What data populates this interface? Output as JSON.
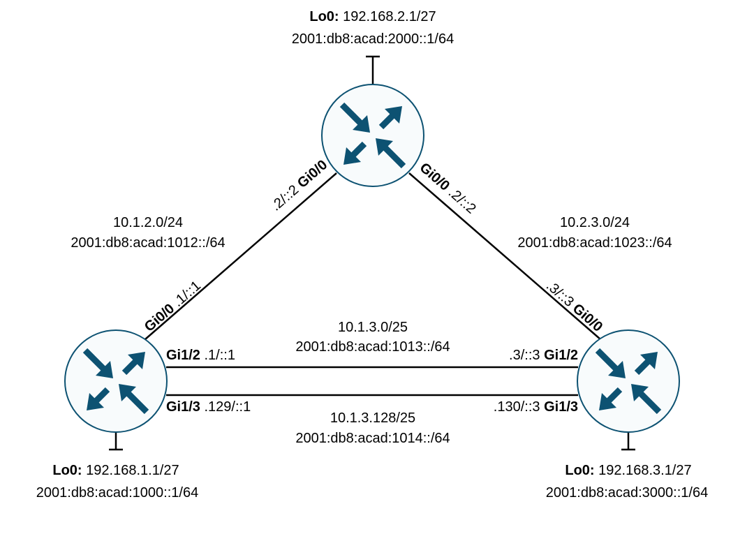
{
  "colors": {
    "router_fill": "#f8fbfc",
    "router_stroke": "#0d5272",
    "arrow": "#0d5272",
    "link": "#000000"
  },
  "routers": {
    "r1": {
      "lo_label": "Lo0:",
      "lo_ipv4": "192.168.1.1/27",
      "lo_ipv6": "2001:db8:acad:1000::1/64",
      "gi00": "Gi0/0",
      "gi00_addr": ".1/::1",
      "gi12": "Gi1/2",
      "gi12_addr": ".1/::1",
      "gi13": "Gi1/3",
      "gi13_addr": ".129/::1"
    },
    "r2": {
      "lo_label": "Lo0:",
      "lo_ipv4": "192.168.2.1/27",
      "lo_ipv6": "2001:db8:acad:2000::1/64",
      "gi00_left": "Gi0/0",
      "gi00_left_addr": ".2/::2",
      "gi00_right": "Gi0/0",
      "gi00_right_addr": ".2/::2"
    },
    "r3": {
      "lo_label": "Lo0:",
      "lo_ipv4": "192.168.3.1/27",
      "lo_ipv6": "2001:db8:acad:3000::1/64",
      "gi00": "Gi0/0",
      "gi00_addr": ".3/::3",
      "gi12": "Gi1/2",
      "gi12_addr": ".3/::3",
      "gi13": "Gi1/3",
      "gi13_addr": ".130/::3"
    }
  },
  "links": {
    "r1_r2": {
      "ipv4": "10.1.2.0/24",
      "ipv6": "2001:db8:acad:1012::/64"
    },
    "r2_r3": {
      "ipv4": "10.2.3.0/24",
      "ipv6": "2001:db8:acad:1023::/64"
    },
    "r1_r3_a": {
      "ipv4": "10.1.3.0/25",
      "ipv6": "2001:db8:acad:1013::/64"
    },
    "r1_r3_b": {
      "ipv4": "10.1.3.128/25",
      "ipv6": "2001:db8:acad:1014::/64"
    }
  }
}
